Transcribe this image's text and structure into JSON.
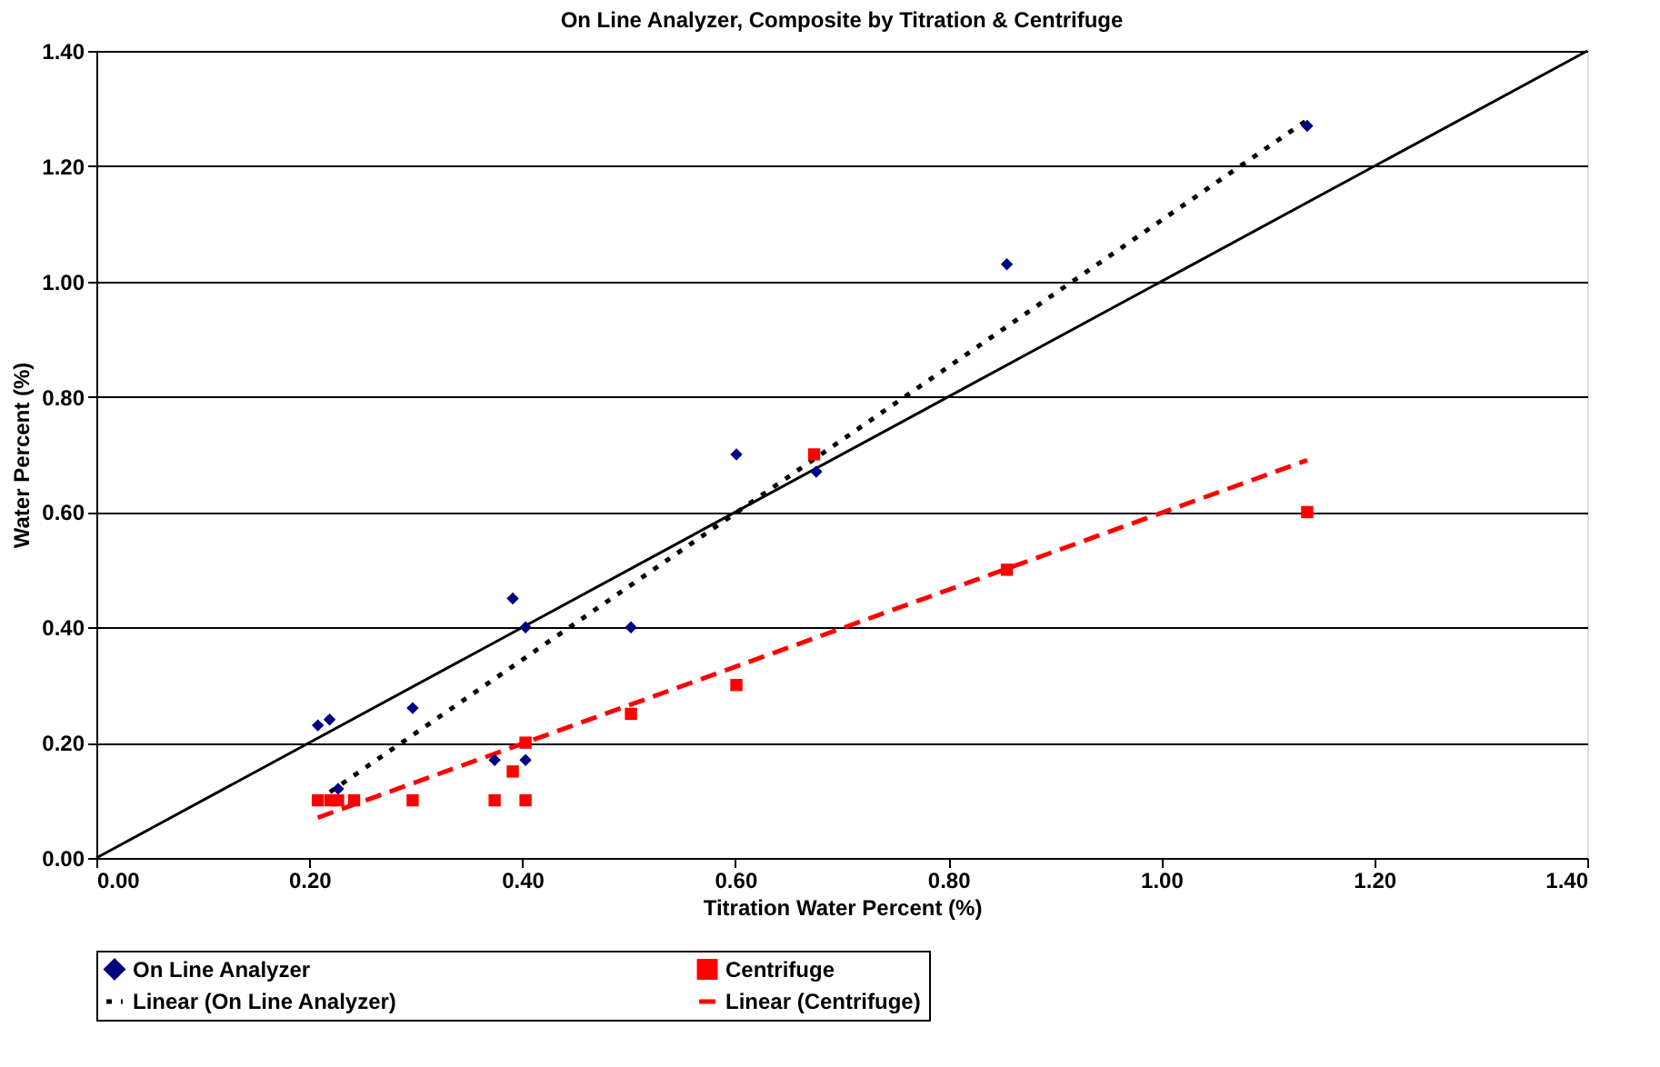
{
  "chart_data": {
    "type": "scatter",
    "title": "On Line Analyzer, Composite by Titration & Centrifuge",
    "xlabel": "Titration Water Percent (%)",
    "ylabel": "Water Percent (%)",
    "xlim": [
      0,
      1.4
    ],
    "ylim": [
      0,
      1.4
    ],
    "xticks": [
      {
        "value": 0,
        "label": "0.00"
      },
      {
        "value": 0.2,
        "label": "0.20"
      },
      {
        "value": 0.4,
        "label": "0.40"
      },
      {
        "value": 0.6,
        "label": "0.60"
      },
      {
        "value": 0.8,
        "label": "0.80"
      },
      {
        "value": 1,
        "label": "1.00"
      },
      {
        "value": 1.2,
        "label": "1.20"
      },
      {
        "value": 1.4,
        "label": "1.40"
      }
    ],
    "yticks": [
      {
        "value": 0,
        "label": "0.00"
      },
      {
        "value": 0.2,
        "label": "0.20"
      },
      {
        "value": 0.4,
        "label": "0.40"
      },
      {
        "value": 0.6,
        "label": "0.60"
      },
      {
        "value": 0.8,
        "label": "0.80"
      },
      {
        "value": 1,
        "label": "1.00"
      },
      {
        "value": 1.2,
        "label": "1.20"
      },
      {
        "value": 1.4,
        "label": "1.40"
      }
    ],
    "grid": "y",
    "legend": "bottom",
    "series": [
      {
        "name": "On Line Analyzer",
        "marker": "diamond",
        "color": "#000080",
        "x": [
          0.208,
          0.219,
          0.227,
          0.297,
          0.374,
          0.391,
          0.403,
          0.403,
          0.502,
          0.601,
          0.676,
          0.855,
          1.137
        ],
        "values": [
          0.23,
          0.24,
          0.12,
          0.26,
          0.17,
          0.45,
          0.4,
          0.17,
          0.4,
          0.7,
          0.67,
          1.03,
          1.27
        ]
      },
      {
        "name": "Centrifuge",
        "marker": "square",
        "color": "#ff0000",
        "x": [
          0.208,
          0.22,
          0.227,
          0.242,
          0.297,
          0.374,
          0.391,
          0.403,
          0.403,
          0.502,
          0.601,
          0.674,
          0.855,
          1.137
        ],
        "values": [
          0.1,
          0.1,
          0.1,
          0.1,
          0.1,
          0.1,
          0.15,
          0.2,
          0.1,
          0.25,
          0.3,
          0.7,
          0.5,
          0.6
        ]
      },
      {
        "name": "Linear (On Line Analyzer)",
        "type": "line",
        "line_style": "dotted",
        "color": "#000000",
        "x": [
          0.208,
          1.137
        ],
        "values": [
          0.1,
          1.28
        ]
      },
      {
        "name": "Linear (Centrifuge)",
        "type": "line",
        "line_style": "dashed",
        "color": "#ff0000",
        "x": [
          0.208,
          1.137
        ],
        "values": [
          0.07,
          0.69
        ]
      },
      {
        "type": "line",
        "line_style": "solid",
        "color": "#000000",
        "x": [
          0,
          1.4
        ],
        "values": [
          0,
          1.4
        ]
      }
    ]
  }
}
